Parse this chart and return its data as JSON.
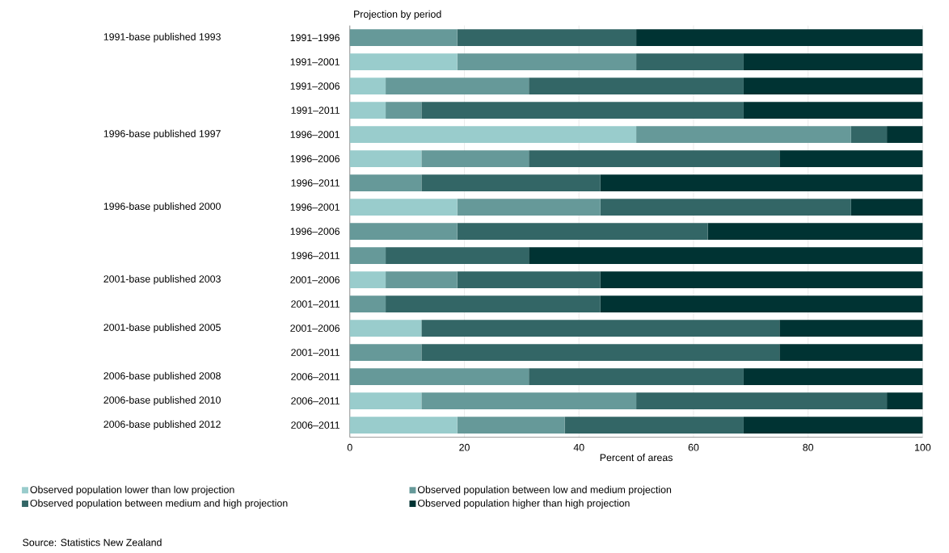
{
  "chart_data": {
    "type": "bar",
    "orientation": "horizontal",
    "stacked": true,
    "title": "Projection by period",
    "xlabel": "Percent of areas",
    "categories": [
      "1991–1996",
      "1991–2001",
      "1991–2006",
      "1991–2011",
      "1996–2001",
      "1996–2006",
      "1996–2011",
      "1996–2001",
      "1996–2006",
      "1996–2011",
      "2001–2006",
      "2001–2011",
      "2001–2006",
      "2001–2011",
      "2006–2011",
      "2006–2011",
      "2006–2011"
    ],
    "series": [
      {
        "name": "Observed population lower than low projection",
        "color": "#99cccc",
        "values": [
          0,
          18.75,
          6.25,
          6.25,
          50,
          12.5,
          0,
          18.75,
          0,
          0,
          6.25,
          0,
          12.5,
          0,
          0,
          12.5,
          18.75
        ]
      },
      {
        "name": "Observed population between low and medium projection",
        "color": "#669999",
        "values": [
          18.75,
          31.25,
          25,
          6.25,
          37.5,
          18.75,
          12.5,
          25,
          18.75,
          6.25,
          12.5,
          6.25,
          0,
          12.5,
          31.25,
          37.5,
          18.75
        ]
      },
      {
        "name": "Observed population between medium and high projection",
        "color": "#336666",
        "values": [
          31.25,
          18.75,
          37.5,
          56.25,
          6.25,
          43.75,
          31.25,
          43.75,
          43.75,
          25,
          25,
          37.5,
          62.5,
          62.5,
          37.5,
          43.75,
          31.25
        ]
      },
      {
        "name": "Observed population higher than high projection",
        "color": "#003333",
        "values": [
          50,
          31.25,
          31.25,
          31.25,
          6.25,
          25,
          56.25,
          12.5,
          37.5,
          68.75,
          56.25,
          56.25,
          25,
          25,
          31.25,
          6.25,
          31.25
        ]
      }
    ],
    "xlim": [
      0,
      100
    ],
    "xticks": [
      0,
      20,
      40,
      60,
      80,
      100
    ],
    "grid": "x",
    "legend": "bottom",
    "annotations": [
      "1991-base published 1993",
      "1996-base published 1997",
      "1996-base published 2000",
      "2001-base published 2003",
      "2001-base published 2005",
      "2006-base published 2008",
      "2006-base published 2010",
      "2006-base published 2012",
      "Source: Statistics New Zealand"
    ]
  }
}
